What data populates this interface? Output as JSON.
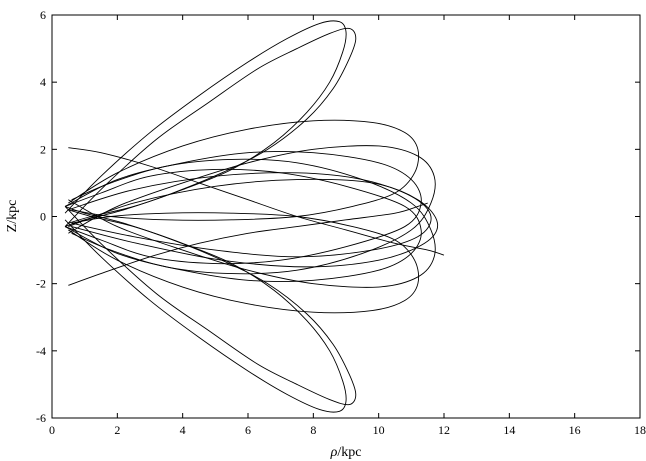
{
  "chart_data": {
    "type": "line",
    "title": "",
    "xlabel_var": "ρ",
    "xlabel_unit": "/kpc",
    "ylabel": "Z/kpc",
    "xlim": [
      0,
      18
    ],
    "ylim": [
      -6,
      6
    ],
    "xticks": [
      0,
      2,
      4,
      6,
      8,
      10,
      12,
      14,
      16,
      18
    ],
    "yticks": [
      -6,
      -4,
      -2,
      0,
      2,
      4,
      6
    ],
    "grid": false,
    "legend": "none",
    "line_color": "#000000",
    "series": [
      {
        "x": [
          0.4,
          1.5,
          3.0,
          4.5,
          6.0,
          7.2,
          8.2,
          8.8,
          9.0,
          8.9,
          8.5,
          7.8,
          6.8,
          5.5,
          4.0,
          2.5,
          1.2,
          0.5
        ],
        "y": [
          0.1,
          1.2,
          2.5,
          3.6,
          4.6,
          5.3,
          5.75,
          5.8,
          5.5,
          4.9,
          4.0,
          3.1,
          2.2,
          1.4,
          0.8,
          0.3,
          0.0,
          -0.2
        ]
      },
      {
        "x": [
          0.4,
          1.6,
          3.2,
          4.8,
          6.3,
          7.5,
          8.5,
          9.1,
          9.3,
          9.1,
          8.6,
          7.8,
          6.6,
          5.2,
          3.7,
          2.2,
          1.0,
          0.4
        ],
        "y": [
          -0.3,
          0.9,
          2.3,
          3.4,
          4.4,
          5.0,
          5.45,
          5.6,
          5.3,
          4.7,
          3.8,
          2.9,
          2.0,
          1.3,
          0.7,
          0.2,
          -0.1,
          -0.3
        ]
      },
      {
        "x": [
          0.4,
          1.5,
          3.0,
          4.5,
          6.0,
          7.2,
          8.2,
          8.8,
          9.0,
          8.9,
          8.5,
          7.8,
          6.8,
          5.5,
          4.0,
          2.5,
          1.2,
          0.5
        ],
        "y": [
          -0.1,
          -1.2,
          -2.5,
          -3.6,
          -4.6,
          -5.3,
          -5.75,
          -5.8,
          -5.5,
          -4.9,
          -4.0,
          -3.1,
          -2.2,
          -1.4,
          -0.8,
          -0.3,
          0.0,
          0.2
        ]
      },
      {
        "x": [
          0.4,
          1.6,
          3.2,
          4.8,
          6.3,
          7.5,
          8.5,
          9.1,
          9.3,
          9.1,
          8.6,
          7.8,
          6.6,
          5.2,
          3.7,
          2.2,
          1.0,
          0.4
        ],
        "y": [
          0.3,
          -0.9,
          -2.3,
          -3.4,
          -4.4,
          -5.0,
          -5.45,
          -5.6,
          -5.3,
          -4.7,
          -3.8,
          -2.9,
          -2.0,
          -1.3,
          -0.7,
          -0.2,
          0.1,
          0.3
        ]
      },
      {
        "x": [
          0.5,
          2.0,
          4.0,
          6.0,
          8.0,
          9.8,
          10.8,
          11.2,
          11.1,
          10.5,
          9.2,
          7.5,
          5.5,
          3.5,
          1.8,
          0.6
        ],
        "y": [
          0.4,
          1.3,
          2.1,
          2.6,
          2.85,
          2.8,
          2.5,
          2.0,
          1.3,
          0.7,
          0.3,
          0.0,
          -0.1,
          -0.1,
          0.0,
          0.2
        ]
      },
      {
        "x": [
          0.5,
          2.0,
          4.0,
          6.0,
          8.0,
          9.8,
          10.8,
          11.2,
          11.1,
          10.5,
          9.2,
          7.5,
          5.5,
          3.5,
          1.8,
          0.6
        ],
        "y": [
          -0.4,
          -1.3,
          -2.1,
          -2.6,
          -2.85,
          -2.8,
          -2.5,
          -2.0,
          -1.3,
          -0.7,
          -0.3,
          0.0,
          0.1,
          0.1,
          0.0,
          -0.2
        ]
      },
      {
        "x": [
          0.5,
          2.0,
          4.0,
          6.0,
          8.0,
          10.0,
          11.2,
          11.7,
          11.6,
          11.0,
          9.5,
          7.5,
          5.5,
          3.5,
          1.8,
          0.6
        ],
        "y": [
          -0.5,
          0.3,
          1.0,
          1.6,
          2.0,
          2.1,
          1.8,
          1.2,
          0.4,
          -0.4,
          -1.1,
          -1.6,
          -1.7,
          -1.5,
          -1.0,
          -0.5
        ]
      },
      {
        "x": [
          0.5,
          2.0,
          4.0,
          6.0,
          8.0,
          10.0,
          11.2,
          11.7,
          11.6,
          11.0,
          9.5,
          7.5,
          5.5,
          3.5,
          1.8,
          0.6
        ],
        "y": [
          0.5,
          -0.3,
          -1.0,
          -1.6,
          -2.0,
          -2.1,
          -1.8,
          -1.2,
          -0.4,
          0.4,
          1.1,
          1.6,
          1.7,
          1.5,
          1.0,
          0.5
        ]
      },
      {
        "x": [
          0.5,
          2.5,
          5.0,
          7.5,
          9.5,
          11.0,
          11.6,
          11.2,
          9.8,
          7.5,
          5.0,
          2.5,
          0.6
        ],
        "y": [
          0.2,
          0.8,
          1.2,
          1.3,
          1.1,
          0.6,
          0.0,
          -0.6,
          -1.0,
          -1.2,
          -1.0,
          -0.6,
          -0.2
        ]
      },
      {
        "x": [
          0.5,
          2.5,
          5.0,
          7.5,
          9.8,
          11.2,
          11.8,
          11.4,
          10.0,
          7.8,
          5.2,
          2.6,
          0.6
        ],
        "y": [
          -0.3,
          0.4,
          0.9,
          1.1,
          1.0,
          0.5,
          -0.2,
          -0.8,
          -1.3,
          -1.5,
          -1.3,
          -0.8,
          -0.3
        ]
      },
      {
        "x": [
          0.5,
          1.5,
          3.0,
          4.5,
          6.0,
          7.5,
          9.0,
          10.5,
          11.5,
          12.0
        ],
        "y": [
          2.05,
          1.9,
          1.5,
          1.0,
          0.5,
          0.0,
          -0.4,
          -0.8,
          -1.0,
          -1.15
        ]
      },
      {
        "x": [
          0.5,
          1.5,
          3.0,
          4.5,
          6.0,
          7.5,
          9.0,
          10.5,
          11.2,
          11.5
        ],
        "y": [
          -2.05,
          -1.7,
          -1.2,
          -0.8,
          -0.5,
          -0.3,
          -0.1,
          0.1,
          0.3,
          0.4
        ]
      },
      {
        "x": [
          0.4,
          2.0,
          4.0,
          6.0,
          8.0,
          10.0,
          11.0,
          11.3,
          10.8,
          9.0,
          7.0,
          5.0,
          3.0,
          1.5,
          0.4
        ],
        "y": [
          0.3,
          1.1,
          1.6,
          1.9,
          1.9,
          1.6,
          1.1,
          0.4,
          -0.3,
          -0.9,
          -1.3,
          -1.4,
          -1.2,
          -0.7,
          -0.3
        ]
      },
      {
        "x": [
          0.4,
          2.0,
          4.0,
          6.0,
          8.0,
          10.0,
          11.0,
          11.3,
          10.8,
          9.0,
          7.0,
          5.0,
          3.0,
          1.5,
          0.4
        ],
        "y": [
          -0.3,
          -1.1,
          -1.6,
          -1.9,
          -1.9,
          -1.6,
          -1.1,
          -0.4,
          0.3,
          0.9,
          1.3,
          1.4,
          1.2,
          0.7,
          0.3
        ]
      }
    ]
  }
}
